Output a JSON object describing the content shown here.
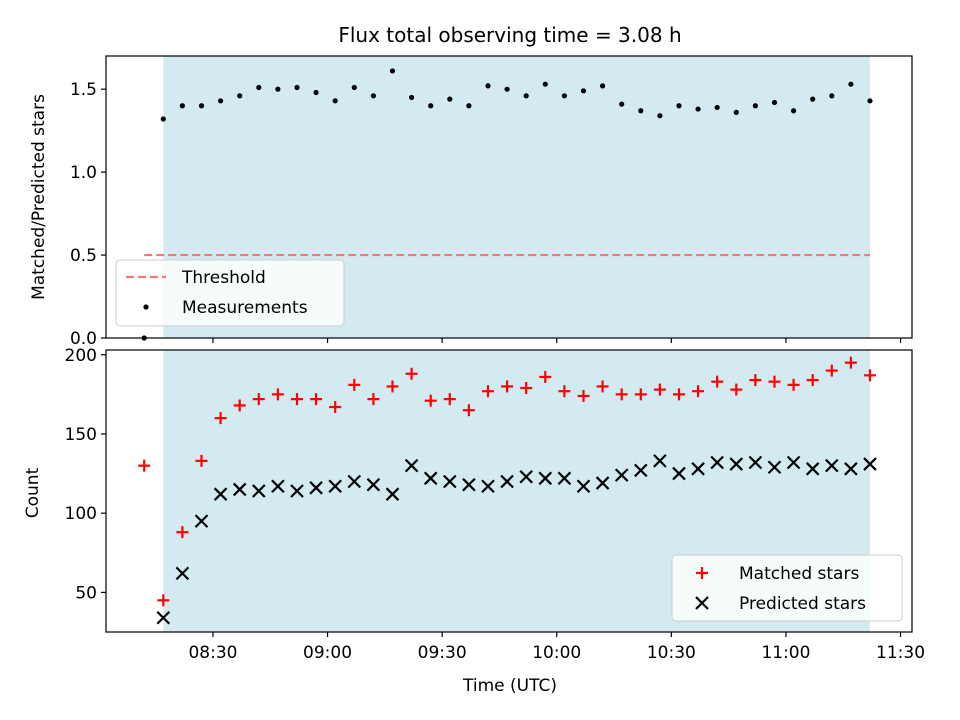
{
  "chart_data": {
    "title": "Flux total observing time = 3.08 h",
    "xlabel": "Time (UTC)",
    "x_ticks": [
      "08:30",
      "09:00",
      "09:30",
      "10:00",
      "10:30",
      "11:00",
      "11:30"
    ],
    "x_range": [
      "08:02",
      "11:33"
    ],
    "shaded_interval": [
      "08:17",
      "11:22"
    ],
    "colors": {
      "shade": "#d3eaf1",
      "threshold": "#f07878",
      "measurements": "#000000",
      "matched": "#ff0000",
      "predicted": "#000000"
    },
    "top": {
      "type": "scatter",
      "ylabel": "Matched/Predicted stars",
      "ylim": [
        0,
        1.7
      ],
      "y_ticks": [
        "0.0",
        "0.5",
        "1.0",
        "1.5"
      ],
      "y_tick_values": [
        0,
        0.5,
        1.0,
        1.5
      ],
      "threshold": {
        "name": "Threshold",
        "y": 0.5,
        "x_start": "08:12",
        "x_end": "11:22"
      },
      "measurements_name": "Measurements",
      "legend_position": "lower-left",
      "measurements": {
        "x": [
          "08:12",
          "08:17",
          "08:22",
          "08:27",
          "08:32",
          "08:37",
          "08:42",
          "08:47",
          "08:52",
          "08:57",
          "09:02",
          "09:07",
          "09:12",
          "09:17",
          "09:22",
          "09:27",
          "09:32",
          "09:37",
          "09:42",
          "09:47",
          "09:52",
          "09:57",
          "10:02",
          "10:07",
          "10:12",
          "10:17",
          "10:22",
          "10:27",
          "10:32",
          "10:37",
          "10:42",
          "10:47",
          "10:52",
          "10:57",
          "11:02",
          "11:07",
          "11:12",
          "11:17",
          "11:22"
        ],
        "y": [
          0.0,
          1.32,
          1.4,
          1.4,
          1.43,
          1.46,
          1.51,
          1.5,
          1.51,
          1.48,
          1.43,
          1.51,
          1.46,
          1.61,
          1.45,
          1.4,
          1.44,
          1.4,
          1.52,
          1.5,
          1.46,
          1.53,
          1.46,
          1.49,
          1.52,
          1.41,
          1.37,
          1.34,
          1.4,
          1.38,
          1.39,
          1.36,
          1.4,
          1.42,
          1.37,
          1.44,
          1.46,
          1.53,
          1.43
        ]
      }
    },
    "bottom": {
      "type": "scatter",
      "ylabel": "Count",
      "ylim": [
        25,
        203
      ],
      "y_ticks": [
        "50",
        "100",
        "150",
        "200"
      ],
      "y_tick_values": [
        50,
        100,
        150,
        200
      ],
      "legend_position": "lower-right",
      "series": [
        {
          "name": "Matched stars",
          "marker": "plus",
          "x": [
            "08:12",
            "08:17",
            "08:22",
            "08:27",
            "08:32",
            "08:37",
            "08:42",
            "08:47",
            "08:52",
            "08:57",
            "09:02",
            "09:07",
            "09:12",
            "09:17",
            "09:22",
            "09:27",
            "09:32",
            "09:37",
            "09:42",
            "09:47",
            "09:52",
            "09:57",
            "10:02",
            "10:07",
            "10:12",
            "10:17",
            "10:22",
            "10:27",
            "10:32",
            "10:37",
            "10:42",
            "10:47",
            "10:52",
            "10:57",
            "11:02",
            "11:07",
            "11:12",
            "11:17",
            "11:22"
          ],
          "values": [
            130,
            45,
            88,
            133,
            160,
            168,
            172,
            175,
            172,
            172,
            167,
            181,
            172,
            180,
            188,
            171,
            172,
            165,
            177,
            180,
            179,
            186,
            177,
            174,
            180,
            175,
            175,
            178,
            175,
            177,
            183,
            178,
            184,
            183,
            181,
            184,
            190,
            195,
            187
          ]
        },
        {
          "name": "Predicted stars",
          "marker": "x",
          "x": [
            "08:17",
            "08:22",
            "08:27",
            "08:32",
            "08:37",
            "08:42",
            "08:47",
            "08:52",
            "08:57",
            "09:02",
            "09:07",
            "09:12",
            "09:17",
            "09:22",
            "09:27",
            "09:32",
            "09:37",
            "09:42",
            "09:47",
            "09:52",
            "09:57",
            "10:02",
            "10:07",
            "10:12",
            "10:17",
            "10:22",
            "10:27",
            "10:32",
            "10:37",
            "10:42",
            "10:47",
            "10:52",
            "10:57",
            "11:02",
            "11:07",
            "11:12",
            "11:17",
            "11:22"
          ],
          "values": [
            34,
            62,
            95,
            112,
            115,
            114,
            117,
            114,
            116,
            117,
            120,
            118,
            112,
            130,
            122,
            120,
            118,
            117,
            120,
            123,
            122,
            122,
            117,
            119,
            124,
            127,
            133,
            125,
            128,
            132,
            131,
            132,
            129,
            132,
            128,
            130,
            128,
            131
          ]
        }
      ]
    }
  }
}
